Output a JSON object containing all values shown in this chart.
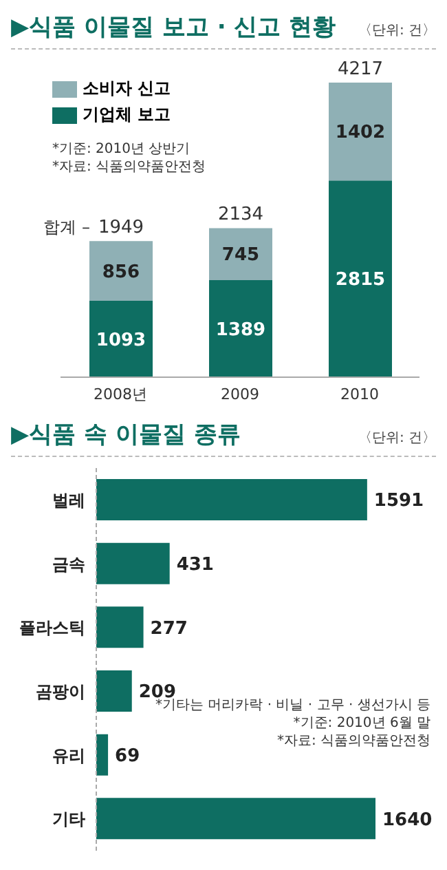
{
  "chart_data": [
    {
      "type": "bar",
      "title": "▶식품 이물질 보고 · 신고 현황",
      "subtitle": "〈단위: 건〉",
      "categories": [
        "2008년",
        "2009",
        "2010"
      ],
      "stacked": true,
      "series": [
        {
          "name": "기업체 보고",
          "color": "#0e6e62",
          "values": [
            1093,
            1389,
            2815
          ]
        },
        {
          "name": "소비자 신고",
          "color": "#8fb0b5",
          "values": [
            856,
            745,
            1402
          ]
        }
      ],
      "data_labels": true,
      "totals": [
        "1949",
        "2134",
        "4217"
      ],
      "tick_labels": "x",
      "legend": "top left",
      "annotations": [
        {
          "text": "합계 –",
          "x": "2008년",
          "y": 1949
        },
        "*기준: 2010년 상반기",
        "*자료: 식품의약품안전청"
      ]
    },
    {
      "type": "bar",
      "orientation": "horizontal",
      "title": "▶식품 속 이물질 종류",
      "subtitle": "〈단위: 건〉",
      "categories": [
        "벌레",
        "금속",
        "플라스틱",
        "곰팡이",
        "유리",
        "기타"
      ],
      "values": [
        1591,
        431,
        277,
        209,
        69,
        1640
      ],
      "color": "#0e6e62",
      "data_labels": true,
      "annotations": [
        "*기타는 머리카락 · 비닐 · 고무 · 생선가시 등",
        "*기준: 2010년 6월 말",
        "*자료: 식품의약품안전청"
      ]
    }
  ]
}
